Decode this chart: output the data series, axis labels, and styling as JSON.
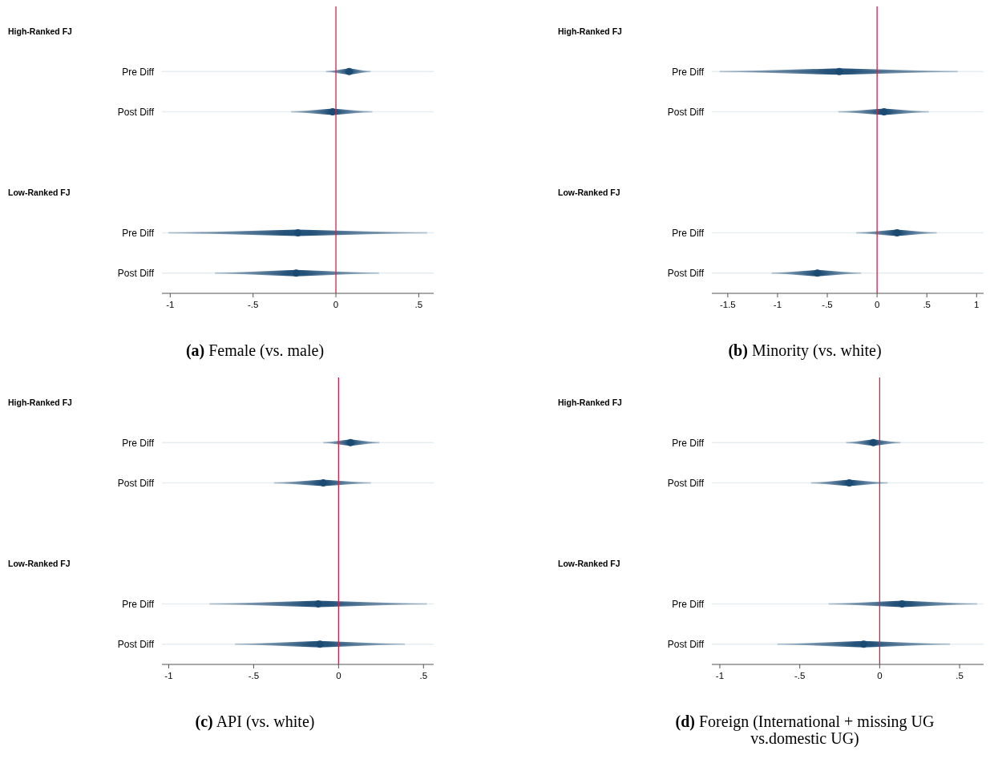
{
  "chart_data": [
    {
      "type": "scatter",
      "orientation": "horizontal",
      "title": "(a) Female (vs. male)",
      "annotations": [
        "High-Ranked FJ",
        "Low-Ranked FJ"
      ],
      "categories": [
        null,
        "Pre Diff",
        "Post Diff",
        null,
        null,
        "Pre Diff",
        "Post Diff"
      ],
      "values": [
        null,
        0.08,
        -0.02,
        null,
        null,
        -0.23,
        -0.24
      ],
      "errors": [
        null,
        [
          -0.06,
          0.21
        ],
        [
          -0.27,
          0.22
        ],
        null,
        null,
        [
          -1.01,
          0.55
        ],
        [
          -0.73,
          0.26
        ]
      ],
      "color": "#1b4a73",
      "marker": "circle",
      "grid": "y",
      "xlim": [
        -1.05,
        0.59
      ],
      "xticks": [
        -1,
        {
          "value": -0.5,
          "label": "-.5"
        },
        0,
        {
          "value": 0.5,
          "label": ".5"
        }
      ],
      "ref_lines": [
        {
          "axis": "x",
          "value": 0,
          "color": "#d6204a"
        }
      ]
    },
    {
      "type": "scatter",
      "orientation": "horizontal",
      "title": "(b) Minority (vs. white)",
      "annotations": [
        "High-Ranked FJ",
        "Low-Ranked FJ"
      ],
      "categories": [
        null,
        "Pre Diff",
        "Post Diff",
        null,
        null,
        "Pre Diff",
        "Post Diff"
      ],
      "values": [
        null,
        -0.38,
        0.07,
        null,
        null,
        0.2,
        -0.6
      ],
      "errors": [
        null,
        [
          -1.58,
          0.81
        ],
        [
          -0.39,
          0.52
        ],
        null,
        null,
        [
          -0.21,
          0.6
        ],
        [
          -1.06,
          -0.16
        ]
      ],
      "color": "#1b4a73",
      "marker": "circle",
      "grid": "y",
      "xlim": [
        -1.66,
        1.07
      ],
      "xticks": [
        {
          "value": -1.5,
          "label": "-1.5"
        },
        -1,
        {
          "value": -0.5,
          "label": "-.5"
        },
        0,
        {
          "value": 0.5,
          "label": ".5"
        },
        1
      ],
      "ref_lines": [
        {
          "axis": "x",
          "value": 0,
          "color": "#d6204a"
        }
      ]
    },
    {
      "type": "scatter",
      "orientation": "horizontal",
      "title": "(c) API (vs. white)",
      "annotations": [
        "High-Ranked FJ",
        "Low-Ranked FJ"
      ],
      "categories": [
        null,
        "Pre Diff",
        "Post Diff",
        null,
        null,
        "Pre Diff",
        "Post Diff"
      ],
      "values": [
        null,
        0.07,
        -0.09,
        null,
        null,
        -0.12,
        -0.11
      ],
      "errors": [
        null,
        [
          -0.09,
          0.24
        ],
        [
          -0.38,
          0.19
        ],
        null,
        null,
        [
          -0.76,
          0.52
        ],
        [
          -0.61,
          0.39
        ]
      ],
      "color": "#1b4a73",
      "marker": "circle",
      "grid": "y",
      "xlim": [
        -1.04,
        0.56
      ],
      "xticks": [
        -1,
        {
          "value": -0.5,
          "label": "-.5"
        },
        0,
        {
          "value": 0.5,
          "label": ".5"
        }
      ],
      "ref_lines": [
        {
          "axis": "x",
          "value": 0,
          "color": "#d6204a"
        }
      ]
    },
    {
      "type": "scatter",
      "orientation": "horizontal",
      "title": "(d) Foreign (International + missing UG vs.domestic UG)",
      "annotations": [
        "High-Ranked FJ",
        "Low-Ranked FJ"
      ],
      "categories": [
        null,
        "Pre Diff",
        "Post Diff",
        null,
        null,
        "Pre Diff",
        "Post Diff"
      ],
      "values": [
        null,
        -0.04,
        -0.19,
        null,
        null,
        0.14,
        -0.1
      ],
      "errors": [
        null,
        [
          -0.21,
          0.13
        ],
        [
          -0.43,
          0.05
        ],
        null,
        null,
        [
          -0.32,
          0.61
        ],
        [
          -0.64,
          0.44
        ]
      ],
      "color": "#1b4a73",
      "marker": "circle",
      "grid": "y",
      "xlim": [
        -1.05,
        0.65
      ],
      "xticks": [
        -1,
        {
          "value": -0.5,
          "label": "-.5"
        },
        0,
        {
          "value": 0.5,
          "label": ".5"
        }
      ],
      "ref_lines": [
        {
          "axis": "x",
          "value": 0,
          "color": "#d6204a"
        }
      ]
    }
  ]
}
